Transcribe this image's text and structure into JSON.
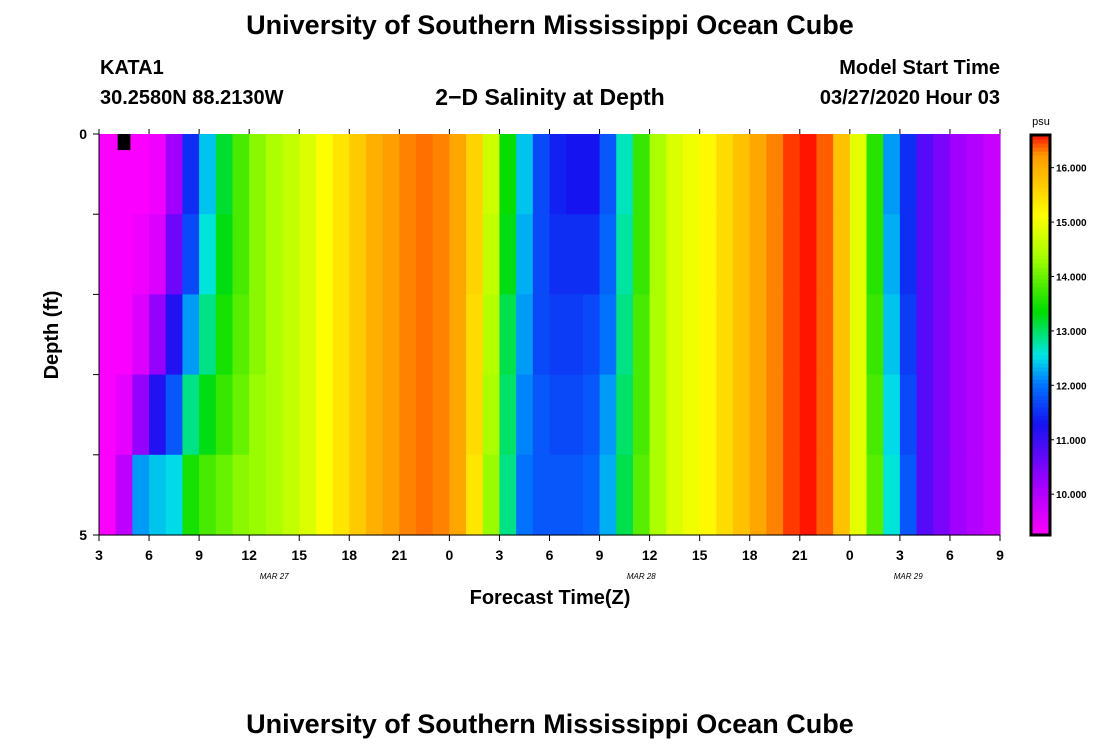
{
  "header": {
    "title": "University of Southern Mississippi Ocean Cube",
    "station": "KATA1",
    "coords": "30.2580N 88.2130W",
    "subtitle": "2−D Salinity at Depth",
    "start_label": "Model Start Time",
    "start_time": "03/27/2020 Hour 03"
  },
  "footer": {
    "title": "University of Southern Mississippi Ocean Cube"
  },
  "chart_data": {
    "type": "heatmap",
    "title": "2−D Salinity at Depth",
    "xlabel": "Forecast Time(Z)",
    "ylabel": "Depth (ft)",
    "x_ticks": [
      "3",
      "6",
      "9",
      "12",
      "15",
      "18",
      "21",
      "0",
      "3",
      "6",
      "9",
      "12",
      "15",
      "18",
      "21",
      "0",
      "3",
      "6",
      "9"
    ],
    "date_labels": [
      {
        "label": "MAR 27",
        "hour_index": 10.5
      },
      {
        "label": "MAR 28",
        "hour_index": 32.5
      },
      {
        "label": "MAR 29",
        "hour_index": 48.5
      }
    ],
    "y_tick_labels": [
      {
        "value": 0,
        "label": "0"
      },
      {
        "value": 5,
        "label": "5"
      }
    ],
    "ylim": [
      0,
      5
    ],
    "colorbar": {
      "unit": "psu",
      "ticks": [
        "10.000",
        "11.000",
        "12.000",
        "13.000",
        "14.000",
        "15.000",
        "16.000"
      ],
      "range": [
        9.25,
        16.6
      ]
    },
    "depth_levels": [
      0.5,
      1.5,
      2.5,
      3.5,
      4.5
    ],
    "time_hours": 54,
    "profile": [
      [
        9.3,
        9.3,
        9.3,
        9.3,
        9.3
      ],
      [
        9.3,
        9.3,
        9.3,
        9.5,
        9.9
      ],
      [
        9.3,
        9.4,
        9.6,
        10.3,
        12.2
      ],
      [
        9.4,
        9.6,
        10.3,
        11.2,
        12.4
      ],
      [
        10.2,
        10.6,
        11.2,
        11.8,
        12.5
      ],
      [
        11.5,
        11.7,
        12.2,
        12.9,
        13.5
      ],
      [
        12.4,
        12.6,
        12.9,
        13.3,
        13.8
      ],
      [
        13.2,
        13.3,
        13.5,
        13.7,
        14.0
      ],
      [
        13.8,
        13.8,
        13.9,
        14.0,
        14.2
      ],
      [
        14.2,
        14.2,
        14.2,
        14.3,
        14.3
      ],
      [
        14.4,
        14.4,
        14.4,
        14.4,
        14.4
      ],
      [
        14.6,
        14.6,
        14.6,
        14.6,
        14.6
      ],
      [
        14.8,
        14.8,
        14.8,
        14.8,
        14.8
      ],
      [
        15.1,
        15.1,
        15.1,
        15.1,
        15.1
      ],
      [
        15.4,
        15.4,
        15.4,
        15.4,
        15.4
      ],
      [
        15.7,
        15.7,
        15.7,
        15.7,
        15.7
      ],
      [
        16.0,
        16.0,
        16.0,
        16.0,
        16.0
      ],
      [
        16.2,
        16.2,
        16.2,
        16.2,
        16.2
      ],
      [
        16.3,
        16.3,
        16.3,
        16.3,
        16.3
      ],
      [
        16.35,
        16.35,
        16.35,
        16.35,
        16.35
      ],
      [
        16.3,
        16.3,
        16.3,
        16.3,
        16.3
      ],
      [
        16.1,
        16.1,
        16.1,
        16.1,
        16.1
      ],
      [
        15.6,
        15.6,
        15.5,
        15.5,
        15.4
      ],
      [
        14.7,
        14.6,
        14.5,
        14.4,
        14.3
      ],
      [
        13.4,
        13.3,
        13.1,
        13.0,
        12.9
      ],
      [
        12.4,
        12.3,
        12.2,
        12.1,
        12.0
      ],
      [
        11.7,
        11.7,
        11.7,
        11.8,
        11.8
      ],
      [
        11.4,
        11.5,
        11.6,
        11.7,
        11.8
      ],
      [
        11.3,
        11.5,
        11.6,
        11.7,
        11.8
      ],
      [
        11.3,
        11.5,
        11.7,
        11.8,
        11.9
      ],
      [
        11.8,
        11.9,
        12.0,
        12.2,
        12.3
      ],
      [
        12.7,
        12.8,
        12.9,
        13.0,
        13.1
      ],
      [
        13.7,
        13.7,
        13.8,
        13.8,
        13.9
      ],
      [
        14.4,
        14.4,
        14.4,
        14.4,
        14.4
      ],
      [
        14.8,
        14.8,
        14.8,
        14.8,
        14.8
      ],
      [
        15.0,
        15.0,
        15.0,
        15.0,
        15.0
      ],
      [
        15.2,
        15.2,
        15.2,
        15.2,
        15.2
      ],
      [
        15.5,
        15.5,
        15.5,
        15.5,
        15.5
      ],
      [
        15.8,
        15.8,
        15.8,
        15.8,
        15.8
      ],
      [
        16.1,
        16.1,
        16.1,
        16.1,
        16.1
      ],
      [
        16.3,
        16.3,
        16.3,
        16.3,
        16.3
      ],
      [
        16.5,
        16.5,
        16.5,
        16.5,
        16.5
      ],
      [
        16.6,
        16.6,
        16.6,
        16.6,
        16.6
      ],
      [
        16.4,
        16.4,
        16.4,
        16.4,
        16.4
      ],
      [
        15.8,
        15.8,
        15.8,
        15.8,
        15.8
      ],
      [
        14.9,
        14.9,
        14.9,
        14.9,
        14.9
      ],
      [
        13.6,
        13.6,
        13.7,
        13.8,
        13.9
      ],
      [
        12.2,
        12.3,
        12.4,
        12.5,
        12.6
      ],
      [
        11.5,
        11.5,
        11.6,
        11.7,
        11.8
      ],
      [
        10.8,
        10.8,
        10.8,
        10.8,
        10.8
      ],
      [
        10.5,
        10.5,
        10.5,
        10.5,
        10.5
      ],
      [
        10.2,
        10.2,
        10.2,
        10.2,
        10.2
      ],
      [
        10.0,
        10.0,
        10.0,
        10.0,
        10.0
      ],
      [
        9.8,
        9.8,
        9.8,
        9.8,
        9.8
      ]
    ],
    "black_patch": {
      "hour_index": 1,
      "depth_from": 0,
      "depth_to": 1
    }
  }
}
